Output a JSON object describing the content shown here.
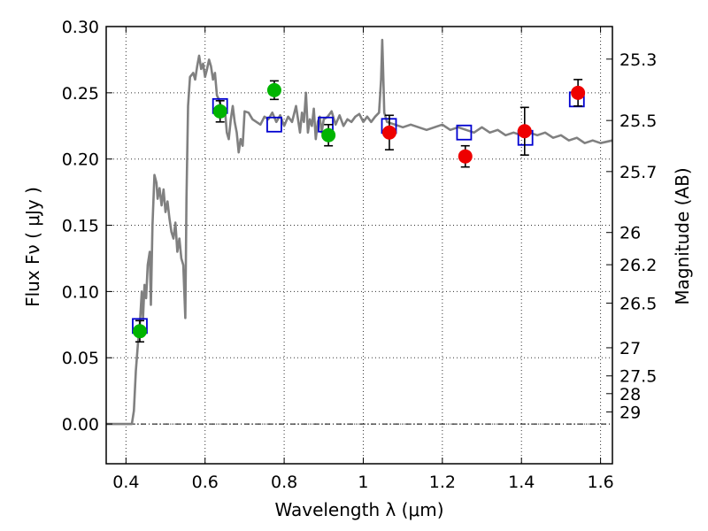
{
  "chart_data": {
    "type": "scatter",
    "xlabel": "Wavelength  λ (μm)",
    "ylabel": "Flux  Fν  ( μJy )",
    "ylabel_right": "Magnitude (AB)",
    "xlim": [
      0.35,
      1.63
    ],
    "ylim": [
      -0.03,
      0.3
    ],
    "grid": true,
    "x_ticks": [
      0.4,
      0.6,
      0.8,
      1.0,
      1.2,
      1.4,
      1.6
    ],
    "x_tick_labels": [
      "0.4",
      "0.6",
      "0.8",
      "1",
      "1.2",
      "1.4",
      "1.6"
    ],
    "y_ticks": [
      0.0,
      0.05,
      0.1,
      0.15,
      0.2,
      0.25,
      0.3
    ],
    "y_tick_labels": [
      "0.00",
      "0.05",
      "0.10",
      "0.15",
      "0.20",
      "0.25",
      "0.30"
    ],
    "right_ticks": [
      {
        "label": "25.3",
        "mag": 25.3
      },
      {
        "label": "25.5",
        "mag": 25.5
      },
      {
        "label": "25.7",
        "mag": 25.7
      },
      {
        "label": "26",
        "mag": 26.0
      },
      {
        "label": "26.2",
        "mag": 26.2
      },
      {
        "label": "26.5",
        "mag": 26.5
      },
      {
        "label": "27",
        "mag": 27.0
      },
      {
        "label": "27.5",
        "mag": 27.5
      },
      {
        "label": "28",
        "mag": 28.0
      },
      {
        "label": "29",
        "mag": 29.0
      }
    ],
    "zero_line": 0.0,
    "colors": {
      "model": "#808080",
      "green": "#00b400",
      "red": "#ee0000",
      "box": "#0000d0",
      "errorbar": "#000000"
    },
    "series": [
      {
        "style": "model-line",
        "points": [
          [
            0.35,
            0.0
          ],
          [
            0.4,
            0.0
          ],
          [
            0.415,
            0.0
          ],
          [
            0.42,
            0.01
          ],
          [
            0.425,
            0.04
          ],
          [
            0.43,
            0.06
          ],
          [
            0.435,
            0.075
          ],
          [
            0.44,
            0.1
          ],
          [
            0.443,
            0.08
          ],
          [
            0.447,
            0.105
          ],
          [
            0.451,
            0.095
          ],
          [
            0.455,
            0.12
          ],
          [
            0.46,
            0.13
          ],
          [
            0.463,
            0.09
          ],
          [
            0.467,
            0.15
          ],
          [
            0.472,
            0.188
          ],
          [
            0.477,
            0.182
          ],
          [
            0.48,
            0.17
          ],
          [
            0.485,
            0.178
          ],
          [
            0.49,
            0.165
          ],
          [
            0.495,
            0.177
          ],
          [
            0.5,
            0.16
          ],
          [
            0.505,
            0.168
          ],
          [
            0.51,
            0.155
          ],
          [
            0.515,
            0.145
          ],
          [
            0.52,
            0.14
          ],
          [
            0.525,
            0.152
          ],
          [
            0.53,
            0.13
          ],
          [
            0.535,
            0.14
          ],
          [
            0.54,
            0.125
          ],
          [
            0.545,
            0.12
          ],
          [
            0.55,
            0.08
          ],
          [
            0.553,
            0.17
          ],
          [
            0.557,
            0.24
          ],
          [
            0.562,
            0.262
          ],
          [
            0.57,
            0.265
          ],
          [
            0.575,
            0.26
          ],
          [
            0.58,
            0.27
          ],
          [
            0.585,
            0.278
          ],
          [
            0.59,
            0.268
          ],
          [
            0.595,
            0.272
          ],
          [
            0.6,
            0.262
          ],
          [
            0.605,
            0.268
          ],
          [
            0.61,
            0.275
          ],
          [
            0.615,
            0.27
          ],
          [
            0.62,
            0.26
          ],
          [
            0.625,
            0.265
          ],
          [
            0.63,
            0.248
          ],
          [
            0.635,
            0.245
          ],
          [
            0.64,
            0.24
          ],
          [
            0.645,
            0.232
          ],
          [
            0.65,
            0.238
          ],
          [
            0.655,
            0.22
          ],
          [
            0.66,
            0.215
          ],
          [
            0.665,
            0.23
          ],
          [
            0.67,
            0.24
          ],
          [
            0.675,
            0.228
          ],
          [
            0.68,
            0.22
          ],
          [
            0.685,
            0.205
          ],
          [
            0.69,
            0.215
          ],
          [
            0.695,
            0.21
          ],
          [
            0.7,
            0.236
          ],
          [
            0.71,
            0.235
          ],
          [
            0.72,
            0.23
          ],
          [
            0.73,
            0.228
          ],
          [
            0.74,
            0.226
          ],
          [
            0.75,
            0.232
          ],
          [
            0.76,
            0.23
          ],
          [
            0.77,
            0.235
          ],
          [
            0.78,
            0.228
          ],
          [
            0.79,
            0.233
          ],
          [
            0.8,
            0.225
          ],
          [
            0.81,
            0.232
          ],
          [
            0.82,
            0.228
          ],
          [
            0.83,
            0.24
          ],
          [
            0.84,
            0.22
          ],
          [
            0.845,
            0.235
          ],
          [
            0.85,
            0.228
          ],
          [
            0.855,
            0.25
          ],
          [
            0.86,
            0.22
          ],
          [
            0.865,
            0.23
          ],
          [
            0.87,
            0.225
          ],
          [
            0.875,
            0.238
          ],
          [
            0.88,
            0.215
          ],
          [
            0.885,
            0.228
          ],
          [
            0.89,
            0.232
          ],
          [
            0.895,
            0.22
          ],
          [
            0.9,
            0.23
          ],
          [
            0.91,
            0.232
          ],
          [
            0.92,
            0.236
          ],
          [
            0.93,
            0.226
          ],
          [
            0.94,
            0.233
          ],
          [
            0.95,
            0.225
          ],
          [
            0.96,
            0.23
          ],
          [
            0.97,
            0.228
          ],
          [
            0.98,
            0.232
          ],
          [
            0.99,
            0.234
          ],
          [
            1.0,
            0.228
          ],
          [
            1.01,
            0.232
          ],
          [
            1.02,
            0.228
          ],
          [
            1.03,
            0.232
          ],
          [
            1.04,
            0.235
          ],
          [
            1.045,
            0.26
          ],
          [
            1.048,
            0.29
          ],
          [
            1.05,
            0.27
          ],
          [
            1.053,
            0.235
          ],
          [
            1.06,
            0.228
          ],
          [
            1.08,
            0.226
          ],
          [
            1.1,
            0.224
          ],
          [
            1.12,
            0.226
          ],
          [
            1.14,
            0.224
          ],
          [
            1.16,
            0.222
          ],
          [
            1.18,
            0.224
          ],
          [
            1.2,
            0.226
          ],
          [
            1.22,
            0.222
          ],
          [
            1.24,
            0.224
          ],
          [
            1.26,
            0.222
          ],
          [
            1.28,
            0.22
          ],
          [
            1.3,
            0.224
          ],
          [
            1.32,
            0.22
          ],
          [
            1.34,
            0.222
          ],
          [
            1.36,
            0.218
          ],
          [
            1.38,
            0.22
          ],
          [
            1.4,
            0.218
          ],
          [
            1.42,
            0.22
          ],
          [
            1.44,
            0.218
          ],
          [
            1.46,
            0.22
          ],
          [
            1.48,
            0.216
          ],
          [
            1.5,
            0.218
          ],
          [
            1.52,
            0.214
          ],
          [
            1.54,
            0.216
          ],
          [
            1.56,
            0.212
          ],
          [
            1.58,
            0.214
          ],
          [
            1.6,
            0.212
          ],
          [
            1.63,
            0.214
          ]
        ]
      },
      {
        "style": "open-square",
        "points": [
          [
            0.435,
            0.074
          ],
          [
            0.638,
            0.24
          ],
          [
            0.775,
            0.226
          ],
          [
            0.905,
            0.226
          ],
          [
            1.065,
            0.225
          ],
          [
            1.255,
            0.22
          ],
          [
            1.41,
            0.216
          ],
          [
            1.54,
            0.245
          ]
        ]
      },
      {
        "style": "green-circle",
        "points": [
          {
            "x": 0.435,
            "y": 0.07,
            "err": 0.008
          },
          {
            "x": 0.638,
            "y": 0.236,
            "err": 0.008
          },
          {
            "x": 0.775,
            "y": 0.252,
            "err": 0.007
          },
          {
            "x": 0.912,
            "y": 0.218,
            "err": 0.008
          }
        ]
      },
      {
        "style": "red-circle",
        "points": [
          {
            "x": 1.066,
            "y": 0.22,
            "err": 0.013
          },
          {
            "x": 1.258,
            "y": 0.202,
            "err": 0.008
          },
          {
            "x": 1.408,
            "y": 0.221,
            "err": 0.018
          },
          {
            "x": 1.543,
            "y": 0.25,
            "err": 0.01
          }
        ]
      }
    ]
  }
}
